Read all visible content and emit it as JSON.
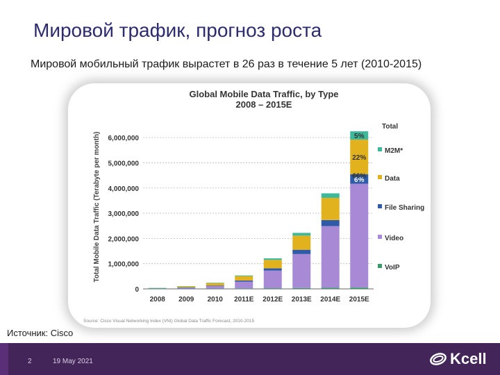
{
  "slide": {
    "title": "Мировой трафик, прогноз роста",
    "subtitle": "Мировой мобильный трафик вырастет в 26 раз в течение 5 лет (2010-2015)",
    "source": "Источник: Cisco",
    "page_number": "2",
    "date": "19 May 2021",
    "logo_text": "Kcell"
  },
  "colors": {
    "title": "#2b2b6e",
    "footer": "#43255a",
    "VoIP": "#3a9a6a",
    "Video": "#a889d6",
    "File Sharing": "#2e5aa8",
    "Data": "#e2b21e",
    "M2M": "#3db89a"
  },
  "chart_data": {
    "type": "bar",
    "stacked": true,
    "title": "Global Mobile Data Traffic, by Type",
    "subtitle": "2008 – 2015E",
    "xlabel": "",
    "ylabel": "Total Mobile Data Traffic (Terabyte per month)",
    "ylim": [
      0,
      6500000
    ],
    "yticks": [
      0,
      1000000,
      2000000,
      3000000,
      4000000,
      5000000,
      6000000
    ],
    "ytick_labels": [
      "0",
      "1,000,000",
      "2,000,000",
      "3,000,000",
      "4,000,000",
      "5,000,000",
      "6,000,000"
    ],
    "categories": [
      "2008",
      "2009",
      "2010",
      "2011E",
      "2012E",
      "2013E",
      "2014E",
      "2015E"
    ],
    "series": [
      {
        "name": "VoIP",
        "values": [
          3000,
          7000,
          12000,
          18000,
          25000,
          32000,
          40000,
          50000
        ]
      },
      {
        "name": "Video",
        "values": [
          12000,
          40000,
          100000,
          270000,
          700000,
          1350000,
          2450000,
          4120000
        ]
      },
      {
        "name": "File Sharing",
        "values": [
          3000,
          10000,
          22000,
          45000,
          90000,
          170000,
          240000,
          375000
        ]
      },
      {
        "name": "Data",
        "values": [
          15000,
          45000,
          100000,
          175000,
          335000,
          560000,
          880000,
          1375000
        ]
      },
      {
        "name": "M2M",
        "values": [
          2000,
          5000,
          10000,
          25000,
          60000,
          110000,
          180000,
          330000
        ]
      }
    ],
    "legend": [
      "Total",
      "M2M*",
      "Data",
      "File Sharing",
      "Video",
      "VoIP"
    ],
    "legend_position": "right",
    "annotations": [
      {
        "category": "2015E",
        "series": "M2M",
        "text": "5%"
      },
      {
        "category": "2015E",
        "series": "Data",
        "text": "22%"
      },
      {
        "category": "2015E",
        "series": "File Sharing",
        "text": "6%"
      },
      {
        "category": "2015E",
        "series": "Video",
        "text": "66%"
      }
    ],
    "source_note": "Source: Cisco Visual Networking Index (VNI) Global Data Traffic Forecast, 2010-2015"
  }
}
